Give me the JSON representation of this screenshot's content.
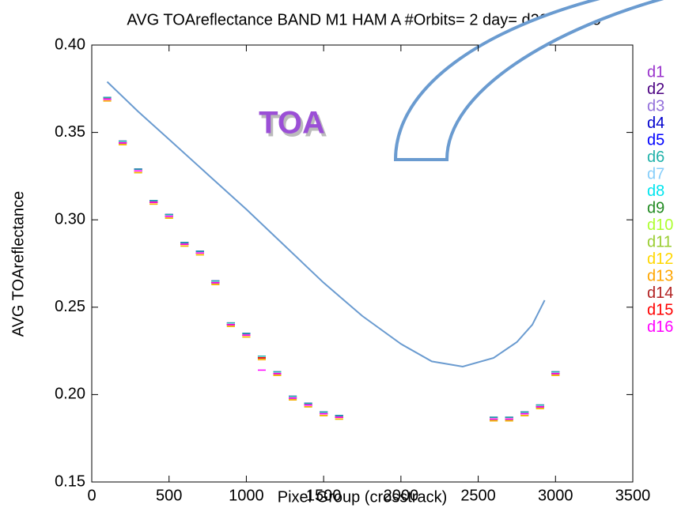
{
  "chart_data": {
    "type": "scatter",
    "title": "AVG TOAreflectance BAND M1 HAM A #Orbits= 2 day= d20121028",
    "x_label": "Pixel Group (crosstrack)",
    "y_label": "AVG TOAreflectance",
    "annotation": "TOA",
    "legend": "right",
    "xlim": [
      0,
      3500
    ],
    "xticks": [
      0,
      500,
      1000,
      1500,
      2000,
      2500,
      3000,
      3500
    ],
    "ylim": [
      0.15,
      0.4
    ],
    "yticks": [
      0.15,
      {
        "value": 0.2,
        "label": "0.20"
      },
      0.25,
      {
        "value": 0.3,
        "label": "0.30"
      },
      0.35,
      {
        "value": 0.4,
        "label": "0.40"
      }
    ],
    "x": [
      100,
      200,
      300,
      400,
      500,
      600,
      700,
      800,
      900,
      1000,
      1100,
      1200,
      1300,
      1400,
      1500,
      1600,
      2600,
      2700,
      2800,
      2900,
      3000
    ],
    "series": [
      {
        "name": "d1",
        "color": "#9932cc",
        "values": [
          0.37,
          0.345,
          0.329,
          0.311,
          0.303,
          0.287,
          0.282,
          0.265,
          0.241,
          0.235,
          0.222,
          0.213,
          0.199,
          0.195,
          0.19,
          0.188,
          0.187,
          0.187,
          0.19,
          0.194,
          0.213
        ]
      },
      {
        "name": "d2",
        "color": "#4b0082",
        "values": [
          0.37,
          0.345,
          0.329,
          0.311,
          0.303,
          0.287,
          0.282,
          0.265,
          0.241,
          0.235,
          0.222,
          0.213,
          0.199,
          0.195,
          0.19,
          0.188,
          0.187,
          0.187,
          0.19,
          0.194,
          0.213
        ]
      },
      {
        "name": "d3",
        "color": "#9370db",
        "values": [
          0.369,
          0.344,
          0.328,
          0.31,
          0.302,
          0.286,
          0.281,
          0.264,
          0.24,
          0.234,
          0.221,
          0.212,
          0.198,
          0.194,
          0.189,
          0.187,
          0.186,
          0.186,
          0.189,
          0.193,
          0.212
        ]
      },
      {
        "name": "d4",
        "color": "#0000cd",
        "values": [
          0.37,
          0.345,
          0.329,
          0.311,
          0.303,
          0.287,
          0.282,
          0.265,
          0.241,
          0.235,
          0.222,
          0.213,
          0.199,
          0.195,
          0.19,
          0.188,
          0.187,
          0.187,
          0.19,
          0.194,
          0.213
        ]
      },
      {
        "name": "d5",
        "color": "#0000ff",
        "values": [
          0.369,
          0.344,
          0.328,
          0.31,
          0.302,
          0.286,
          0.281,
          0.264,
          0.24,
          0.234,
          0.221,
          0.212,
          0.198,
          0.194,
          0.189,
          0.187,
          0.186,
          0.186,
          0.189,
          0.193,
          0.212
        ]
      },
      {
        "name": "d6",
        "color": "#20b2aa",
        "values": [
          0.37,
          0.345,
          0.329,
          0.311,
          0.303,
          0.287,
          0.282,
          0.265,
          0.241,
          0.235,
          0.222,
          0.213,
          0.199,
          0.195,
          0.19,
          0.188,
          0.187,
          0.187,
          0.19,
          0.194,
          0.213
        ]
      },
      {
        "name": "d7",
        "color": "#87cefa",
        "values": [
          0.369,
          0.344,
          0.328,
          0.31,
          0.302,
          0.286,
          0.281,
          0.264,
          0.24,
          0.234,
          0.221,
          0.212,
          0.198,
          0.194,
          0.189,
          0.187,
          0.186,
          0.186,
          0.189,
          0.193,
          0.212
        ]
      },
      {
        "name": "d8",
        "color": "#00e5ee",
        "values": [
          0.368,
          0.343,
          0.327,
          0.309,
          0.301,
          0.285,
          0.28,
          0.263,
          0.239,
          0.233,
          0.22,
          0.211,
          0.197,
          0.193,
          0.188,
          0.186,
          0.185,
          0.185,
          0.188,
          0.192,
          0.211
        ]
      },
      {
        "name": "d9",
        "color": "#228b22",
        "values": [
          0.369,
          0.344,
          0.328,
          0.31,
          0.302,
          0.286,
          0.281,
          0.264,
          0.24,
          0.234,
          0.221,
          0.212,
          0.198,
          0.194,
          0.189,
          0.187,
          0.186,
          0.186,
          0.189,
          0.193,
          0.212
        ]
      },
      {
        "name": "d10",
        "color": "#adff2f",
        "values": [
          0.368,
          0.343,
          0.327,
          0.309,
          0.301,
          0.285,
          0.28,
          0.263,
          0.239,
          0.233,
          0.22,
          0.211,
          0.197,
          0.193,
          0.188,
          0.186,
          0.185,
          0.185,
          0.188,
          0.192,
          0.211
        ]
      },
      {
        "name": "d11",
        "color": "#9acd32",
        "values": [
          0.369,
          0.344,
          0.328,
          0.31,
          0.302,
          0.286,
          0.281,
          0.264,
          0.24,
          0.234,
          0.221,
          0.212,
          0.198,
          0.194,
          0.189,
          0.187,
          0.186,
          0.186,
          0.189,
          0.193,
          0.212
        ]
      },
      {
        "name": "d12",
        "color": "#ffd700",
        "values": [
          0.368,
          0.343,
          0.327,
          0.309,
          0.301,
          0.285,
          0.28,
          0.263,
          0.239,
          0.233,
          0.22,
          0.211,
          0.197,
          0.193,
          0.188,
          0.186,
          0.185,
          0.185,
          0.188,
          0.192,
          0.211
        ]
      },
      {
        "name": "d13",
        "color": "#ffa500",
        "values": [
          0.368,
          0.343,
          0.327,
          0.309,
          0.301,
          0.285,
          0.28,
          0.263,
          0.239,
          0.233,
          0.22,
          0.211,
          0.197,
          0.193,
          0.188,
          0.186,
          0.185,
          0.185,
          0.188,
          0.192,
          0.211
        ]
      },
      {
        "name": "d14",
        "color": "#b22222",
        "values": [
          0.369,
          0.344,
          0.328,
          0.31,
          0.302,
          0.286,
          0.281,
          0.264,
          0.24,
          0.234,
          0.221,
          0.212,
          0.198,
          0.194,
          0.189,
          0.187,
          0.186,
          0.186,
          0.189,
          0.193,
          0.212
        ]
      },
      {
        "name": "d15",
        "color": "#ff0000",
        "values": [
          0.369,
          0.344,
          0.328,
          0.31,
          0.302,
          0.286,
          0.281,
          0.264,
          0.24,
          0.234,
          0.221,
          0.212,
          0.198,
          0.194,
          0.189,
          0.187,
          0.186,
          0.186,
          0.189,
          0.193,
          0.212
        ]
      },
      {
        "name": "d16",
        "color": "#ff00ff",
        "values": [
          0.369,
          0.344,
          0.328,
          0.31,
          0.302,
          0.286,
          0.281,
          0.264,
          0.24,
          0.234,
          0.214,
          0.212,
          0.198,
          0.194,
          0.189,
          0.187,
          0.186,
          0.186,
          0.189,
          0.193,
          0.212
        ]
      }
    ],
    "curve": {
      "color": "#6a9bd0",
      "x": [
        100,
        300,
        500,
        750,
        1000,
        1250,
        1500,
        1750,
        2000,
        2200,
        2400,
        2600,
        2750,
        2850,
        2930
      ],
      "values": [
        0.379,
        0.362,
        0.346,
        0.326,
        0.306,
        0.285,
        0.264,
        0.245,
        0.229,
        0.219,
        0.216,
        0.221,
        0.23,
        0.24,
        0.254
      ]
    }
  }
}
